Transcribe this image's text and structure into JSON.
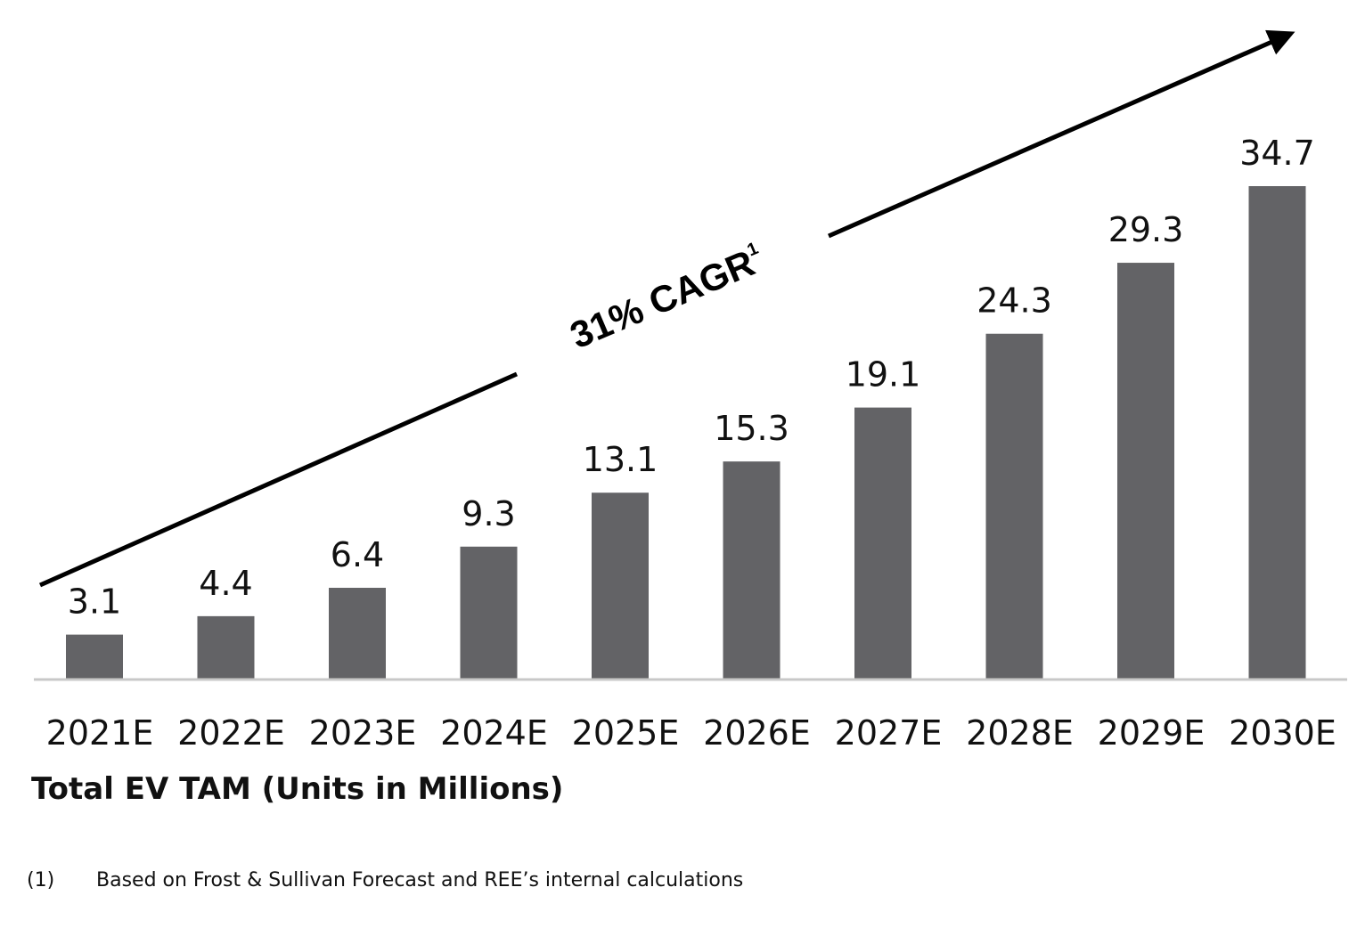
{
  "chart_data": {
    "type": "bar",
    "categories": [
      "2021E",
      "2022E",
      "2023E",
      "2024E",
      "2025E",
      "2026E",
      "2027E",
      "2028E",
      "2029E",
      "2030E"
    ],
    "values": [
      3.1,
      4.4,
      6.4,
      9.3,
      13.1,
      15.3,
      19.1,
      24.3,
      29.3,
      34.7
    ],
    "value_labels": [
      "3.1",
      "4.4",
      "6.4",
      "9.3",
      "13.1",
      "15.3",
      "19.1",
      "24.3",
      "29.3",
      "34.7"
    ],
    "xlabel": "Total EV TAM (Units in Millions)",
    "ylabel": "",
    "ylim": [
      0,
      34.7
    ],
    "grid": false,
    "legend": "none",
    "annotation": {
      "text": "31% CAGR",
      "superscript": "1"
    },
    "bar_color": "#636366"
  },
  "footnote": {
    "number": "(1)",
    "text": "Based on Frost & Sullivan Forecast and REE’s internal calculations"
  }
}
